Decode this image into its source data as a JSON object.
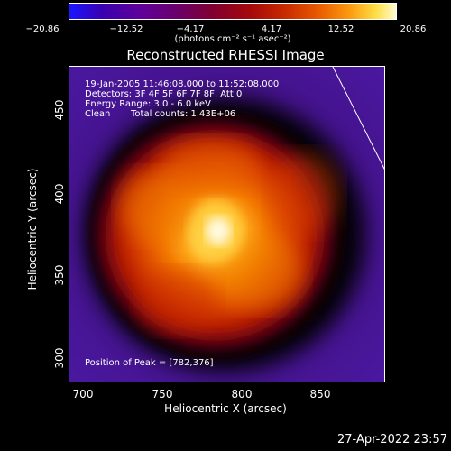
{
  "colorbar": {
    "ticks": [
      "−20.86",
      "−12.52",
      "−4.17",
      "4.17",
      "12.52",
      "20.86"
    ],
    "units": "(photons cm⁻² s⁻¹ asec⁻²)"
  },
  "title": "Reconstructed RHESSI Image",
  "info": {
    "line1": "19-Jan-2005 11:46:08.000 to 11:52:08.000",
    "line2": "Detectors: 3F 4F 5F 6F 7F 8F, Att 0",
    "line3": "Energy Range: 3.0 - 6.0 keV",
    "line4_a": "Clean",
    "line4_b": "Total counts: 1.43E+06",
    "peak": "Position of Peak = [782,376]"
  },
  "axes": {
    "xlabel": "Heliocentric X (arcsec)",
    "ylabel": "Heliocentric Y (arcsec)",
    "xticks": [
      "700",
      "750",
      "800",
      "850"
    ],
    "yticks": [
      "300",
      "350",
      "400",
      "450"
    ]
  },
  "timestamp": "27-Apr-2022 23:57"
}
